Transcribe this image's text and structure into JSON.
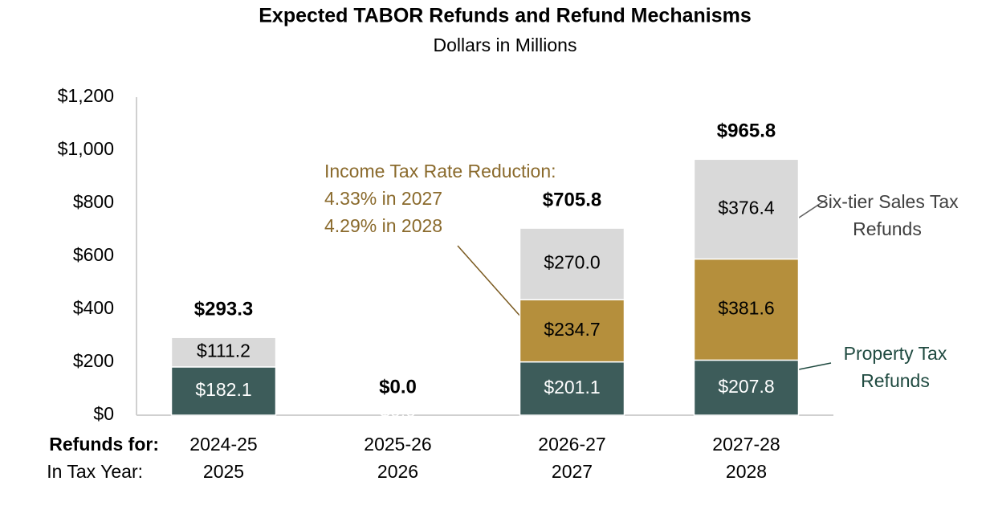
{
  "chart_data": {
    "type": "stacked_bar",
    "title": "Expected TABOR Refunds and Refund Mechanisms",
    "subtitle": "Dollars in Millions",
    "row_headers": [
      "Refunds for:",
      "In Tax Year:"
    ],
    "categories": [
      "2024-25",
      "2025-26",
      "2026-27",
      "2027-28"
    ],
    "tax_years": [
      "2025",
      "2026",
      "2027",
      "2028"
    ],
    "series": [
      {
        "name": "Property Tax Refunds",
        "color": "#3d5c5a",
        "label_color": "#ffffff",
        "name_color": "#1f4a40",
        "values": [
          182.1,
          0,
          201.1,
          207.8
        ],
        "value_labels": [
          "$182.1",
          "$0.0",
          "$201.1",
          "$207.8"
        ]
      },
      {
        "name": "Income Tax Rate Reduction:",
        "color": "#b58f3c",
        "label_color": "#000000",
        "name_color": "#8a6a2c",
        "values": [
          null,
          null,
          234.7,
          381.6
        ],
        "value_labels": [
          null,
          null,
          "$234.7",
          "$381.6"
        ]
      },
      {
        "name": "Six-tier Sales Tax Refunds",
        "color": "#d9d9d9",
        "label_color": "#000000",
        "name_color": "#404040",
        "values": [
          111.2,
          null,
          270.0,
          376.4
        ],
        "value_labels": [
          "$111.2",
          null,
          "$270.0",
          "$376.4"
        ]
      }
    ],
    "totals": [
      293.3,
      0.0,
      705.8,
      965.8
    ],
    "total_labels": [
      "$293.3",
      "$0.0",
      "$705.8",
      "$965.8"
    ],
    "annotations": [
      "4.33% in 2027",
      "4.29% in 2028"
    ],
    "ylim": [
      0,
      1200
    ],
    "yticks": [
      {
        "value": 0,
        "label": "$0"
      },
      {
        "value": 200,
        "label": "$200"
      },
      {
        "value": 400,
        "label": "$400"
      },
      {
        "value": 600,
        "label": "$600"
      },
      {
        "value": 800,
        "label": "$800"
      },
      {
        "value": 1000,
        "label": "$1,000"
      },
      {
        "value": 1200,
        "label": "$1,200"
      }
    ],
    "grid": false
  }
}
